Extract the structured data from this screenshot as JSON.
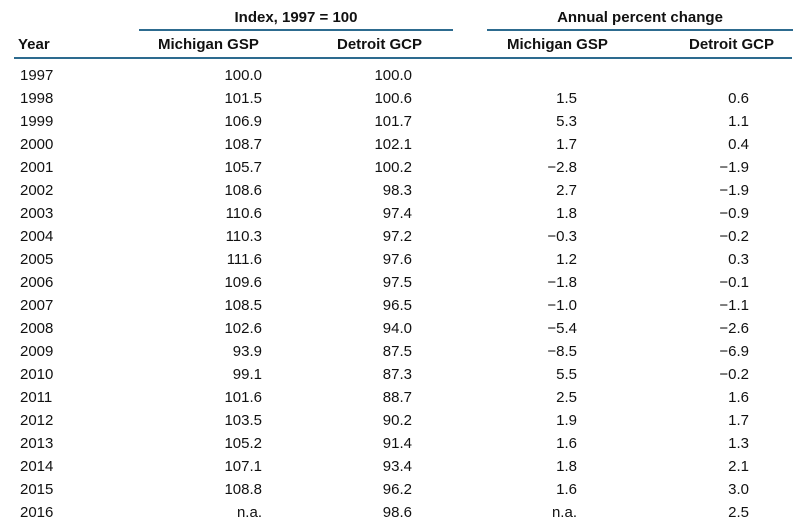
{
  "table": {
    "group_headers": {
      "index": "Index, 1997 = 100",
      "change": "Annual percent change"
    },
    "column_headers": {
      "year": "Year",
      "index_michigan": "Michigan GSP",
      "index_detroit": "Detroit GCP",
      "change_michigan": "Michigan GSP",
      "change_detroit": "Detroit GCP"
    },
    "rows": [
      {
        "year": "1997",
        "mi_index": "100.0",
        "de_index": "100.0",
        "mi_change": "",
        "de_change": ""
      },
      {
        "year": "1998",
        "mi_index": "101.5",
        "de_index": "100.6",
        "mi_change": "1.5",
        "de_change": "0.6"
      },
      {
        "year": "1999",
        "mi_index": "106.9",
        "de_index": "101.7",
        "mi_change": "5.3",
        "de_change": "1.1"
      },
      {
        "year": "2000",
        "mi_index": "108.7",
        "de_index": "102.1",
        "mi_change": "1.7",
        "de_change": "0.4"
      },
      {
        "year": "2001",
        "mi_index": "105.7",
        "de_index": "100.2",
        "mi_change": "−2.8",
        "de_change": "−1.9"
      },
      {
        "year": "2002",
        "mi_index": "108.6",
        "de_index": "98.3",
        "mi_change": "2.7",
        "de_change": "−1.9"
      },
      {
        "year": "2003",
        "mi_index": "110.6",
        "de_index": "97.4",
        "mi_change": "1.8",
        "de_change": "−0.9"
      },
      {
        "year": "2004",
        "mi_index": "110.3",
        "de_index": "97.2",
        "mi_change": "−0.3",
        "de_change": "−0.2"
      },
      {
        "year": "2005",
        "mi_index": "111.6",
        "de_index": "97.6",
        "mi_change": "1.2",
        "de_change": "0.3"
      },
      {
        "year": "2006",
        "mi_index": "109.6",
        "de_index": "97.5",
        "mi_change": "−1.8",
        "de_change": "−0.1"
      },
      {
        "year": "2007",
        "mi_index": "108.5",
        "de_index": "96.5",
        "mi_change": "−1.0",
        "de_change": "−1.1"
      },
      {
        "year": "2008",
        "mi_index": "102.6",
        "de_index": "94.0",
        "mi_change": "−5.4",
        "de_change": "−2.6"
      },
      {
        "year": "2009",
        "mi_index": "93.9",
        "de_index": "87.5",
        "mi_change": "−8.5",
        "de_change": "−6.9"
      },
      {
        "year": "2010",
        "mi_index": "99.1",
        "de_index": "87.3",
        "mi_change": "5.5",
        "de_change": "−0.2"
      },
      {
        "year": "2011",
        "mi_index": "101.6",
        "de_index": "88.7",
        "mi_change": "2.5",
        "de_change": "1.6"
      },
      {
        "year": "2012",
        "mi_index": "103.5",
        "de_index": "90.2",
        "mi_change": "1.9",
        "de_change": "1.7"
      },
      {
        "year": "2013",
        "mi_index": "105.2",
        "de_index": "91.4",
        "mi_change": "1.6",
        "de_change": "1.3"
      },
      {
        "year": "2014",
        "mi_index": "107.1",
        "de_index": "93.4",
        "mi_change": "1.8",
        "de_change": "2.1"
      },
      {
        "year": "2015",
        "mi_index": "108.8",
        "de_index": "96.2",
        "mi_change": "1.6",
        "de_change": "3.0"
      },
      {
        "year": "2016",
        "mi_index": "n.a.",
        "de_index": "98.6",
        "mi_change": "n.a.",
        "de_change": "2.5"
      }
    ],
    "colors": {
      "rule": "#2d6b8f",
      "text": "#111111"
    }
  }
}
